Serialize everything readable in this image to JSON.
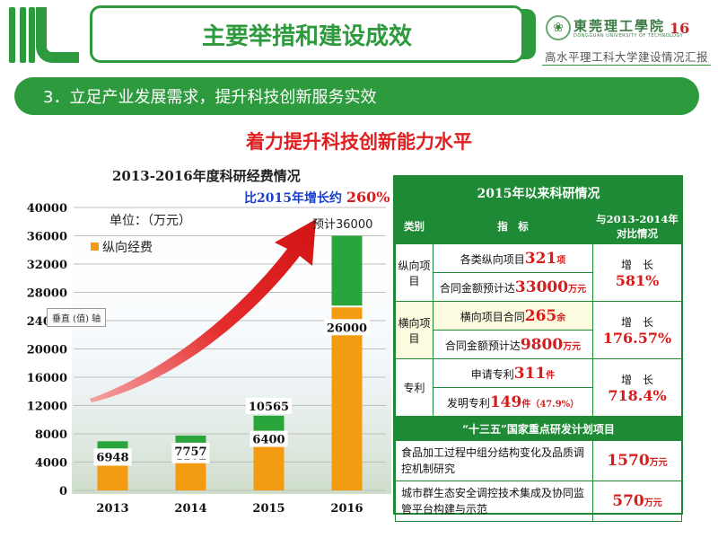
{
  "header": {
    "title": "主要举措和建设成效",
    "university_name": "東莞理工學院",
    "university_en": "DONGGUAN UNIVERSITY OF TECHNOLOGY",
    "page_number": "16",
    "subtitle": "高水平理工科大学建设情况汇报"
  },
  "section": {
    "label": "3．立足产业发展需求，提升科技创新服务实效"
  },
  "main_heading": "着力提升科技创新能力水平",
  "chart_data": {
    "type": "bar",
    "title": "2013-2016年度科研经费情况",
    "annotation": "比2015年增长约",
    "annotation_pct": "260%",
    "unit_label": "单位：（万元）",
    "legend_label": "纵向经费",
    "tooltip": "垂直 (值) 轴",
    "forecast_label": "预计36000",
    "categories": [
      "2013",
      "2014",
      "2015",
      "2016"
    ],
    "ylim": [
      0,
      40000
    ],
    "yticks": [
      0,
      4000,
      8000,
      12000,
      16000,
      20000,
      24000,
      28000,
      32000,
      36000,
      40000
    ],
    "series": [
      {
        "name": "纵向经费",
        "values": [
          3752,
          4102,
          6400,
          26000
        ],
        "color": "#f39c12"
      },
      {
        "values": [
          3196,
          3655,
          4165,
          10000
        ],
        "color": "#2aa53c"
      }
    ],
    "bottom_labels": [
      "3752",
      "4102",
      "6400",
      "26000"
    ],
    "top_labels": [
      "6948",
      "7757",
      "10565",
      ""
    ]
  },
  "table": {
    "title": "2015年以来科研情况",
    "col_headers": [
      "类别",
      "指　标",
      "与2013-2014年对比情况"
    ],
    "groups": [
      {
        "category": "纵向项目",
        "rows": [
          {
            "prefix": "各类纵向项目",
            "value": "321",
            "unit": "项"
          },
          {
            "prefix": "合同金额预计达",
            "value": "33000",
            "unit": "万元"
          }
        ],
        "growth_label": "增　长",
        "growth_value": "581%"
      },
      {
        "category": "横向项目",
        "rows": [
          {
            "prefix": "横向项目合同",
            "value": "265",
            "unit": "余"
          },
          {
            "prefix": "合同金额预计达",
            "value": "9800",
            "unit": "万元"
          }
        ],
        "growth_label": "增　长",
        "growth_value": "176.57%"
      },
      {
        "category": "专利",
        "rows": [
          {
            "prefix": "申请专利",
            "value": "311",
            "unit": "件"
          },
          {
            "prefix": "发明专利",
            "value": "149",
            "unit": "件（47.9%）"
          }
        ],
        "growth_label": "增　长",
        "growth_value": "718.4%"
      }
    ],
    "key_section_title": "“十三五”国家重点研发计划项目",
    "key_projects": [
      {
        "name": "食品加工过程中组分结构变化及品质调控机制研究",
        "value": "1570",
        "unit": "万元"
      },
      {
        "name": "城市群生态安全调控技术集成及协同监管平台构建与示范",
        "value": "570",
        "unit": "万元"
      }
    ]
  },
  "colors": {
    "brand_green": "#2e9a3e",
    "table_green": "#1f8a35",
    "accent_red": "#e02020",
    "bar_orange": "#f39c12",
    "bar_green": "#2aa53c"
  }
}
